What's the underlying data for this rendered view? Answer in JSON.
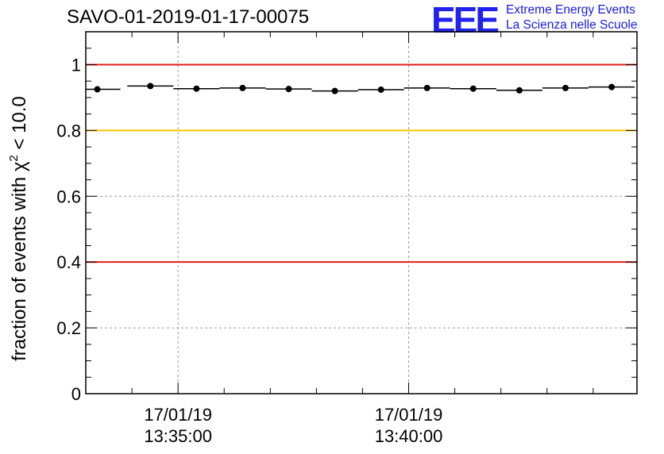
{
  "header": {
    "title": "SAVO-01-2019-01-17-00075",
    "logo": "EEE",
    "org_line1": "Extreme Energy Events",
    "org_line2": "La Scienza nelle Scuole"
  },
  "colors": {
    "threshold_red": "#e0201a",
    "threshold_orange": "#ffc400",
    "marker": "#000000",
    "logo_blue": "#2222ee"
  },
  "chart_data": {
    "type": "scatter",
    "title": "SAVO-01-2019-01-17-00075",
    "ylabel_prefix": "fraction of events with χ",
    "ylabel_exp": "2",
    "ylabel_suffix": " < 10.0",
    "xlabel": "",
    "ylim": [
      0,
      1.1
    ],
    "xlim_min": [
      -2.0,
      9.95
    ],
    "grid": true,
    "ytick_labels": [
      {
        "value": 0,
        "label": "0"
      },
      {
        "value": 0.2,
        "label": "0.2"
      },
      {
        "value": 0.4,
        "label": "0.4"
      },
      {
        "value": 0.6,
        "label": "0.6"
      },
      {
        "value": 0.8,
        "label": "0.8"
      },
      {
        "value": 1.0,
        "label": "1"
      }
    ],
    "xtick_labels": [
      {
        "value": 0,
        "date": "17/01/19",
        "time": "13:35:00"
      },
      {
        "value": 5,
        "date": "17/01/19",
        "time": "13:40:00"
      }
    ],
    "reference_lines": [
      {
        "y": 1.0,
        "color": "red"
      },
      {
        "y": 0.8,
        "color": "orange"
      },
      {
        "y": 0.4,
        "color": "red"
      }
    ],
    "bin_width_min": 0.5,
    "x_minutes_after_1335": [
      -1.75,
      -0.6,
      0.4,
      1.4,
      2.4,
      3.4,
      4.4,
      5.4,
      6.4,
      7.4,
      8.4,
      9.4
    ],
    "values": [
      0.925,
      0.935,
      0.927,
      0.929,
      0.926,
      0.92,
      0.924,
      0.929,
      0.927,
      0.922,
      0.929,
      0.932
    ]
  }
}
